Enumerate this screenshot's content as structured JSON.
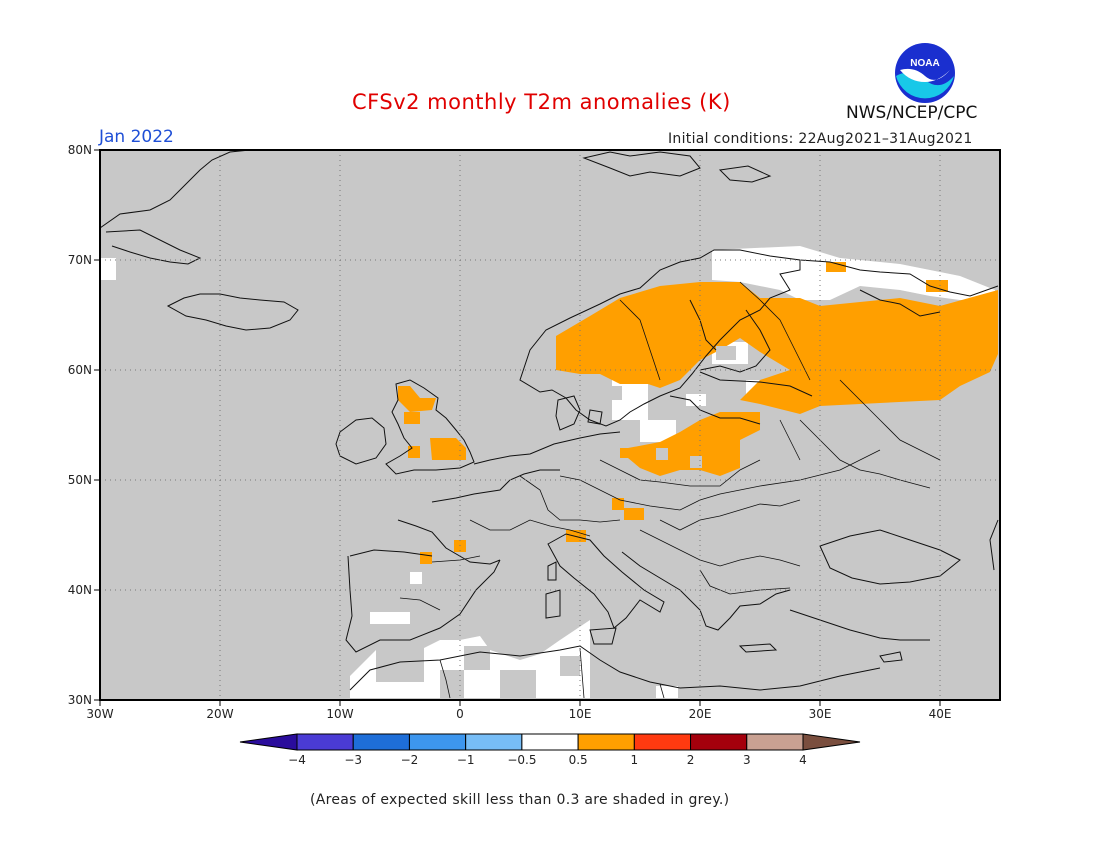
{
  "header": {
    "title": "CFSv2 monthly T2m anomalies (K)",
    "agency": "NWS/NCEP/CPC",
    "month": "Jan 2022",
    "initial_conditions": "Initial conditions: 22Aug2021–31Aug2021",
    "logo_text": "NOAA"
  },
  "map": {
    "lon_range": [
      -30,
      45
    ],
    "lat_range": [
      30,
      80
    ],
    "x_ticks": [
      "30W",
      "20W",
      "10W",
      "0",
      "10E",
      "20E",
      "30E",
      "40E"
    ],
    "y_ticks": [
      "80N",
      "70N",
      "60N",
      "50N",
      "40N",
      "30N"
    ],
    "ocean_color": "#c8c8c8",
    "low_skill_color": "#c8c8c8",
    "neutral_color": "#ffffff",
    "warm_color": "#ff9f00",
    "warm_anomaly_regions": [
      "Norway",
      "Sweden",
      "Finland",
      "Northwest Russia",
      "Baltic states",
      "Poland",
      "Scotland",
      "Northern England",
      "Czechia",
      "Austria"
    ]
  },
  "colorbar": {
    "labels": [
      "−4",
      "−3",
      "−2",
      "−1",
      "−0.5",
      "0.5",
      "1",
      "2",
      "3",
      "4"
    ],
    "colors": [
      "#2a0c9c",
      "#4a3bd4",
      "#1e6ed8",
      "#3d96ee",
      "#77bdf6",
      "#ffffff",
      "#ff9f00",
      "#ff3a10",
      "#a4000c",
      "#c9a192",
      "#7a4e3e"
    ]
  },
  "footnote": "(Areas of expected skill less than 0.3 are shaded in grey.)"
}
